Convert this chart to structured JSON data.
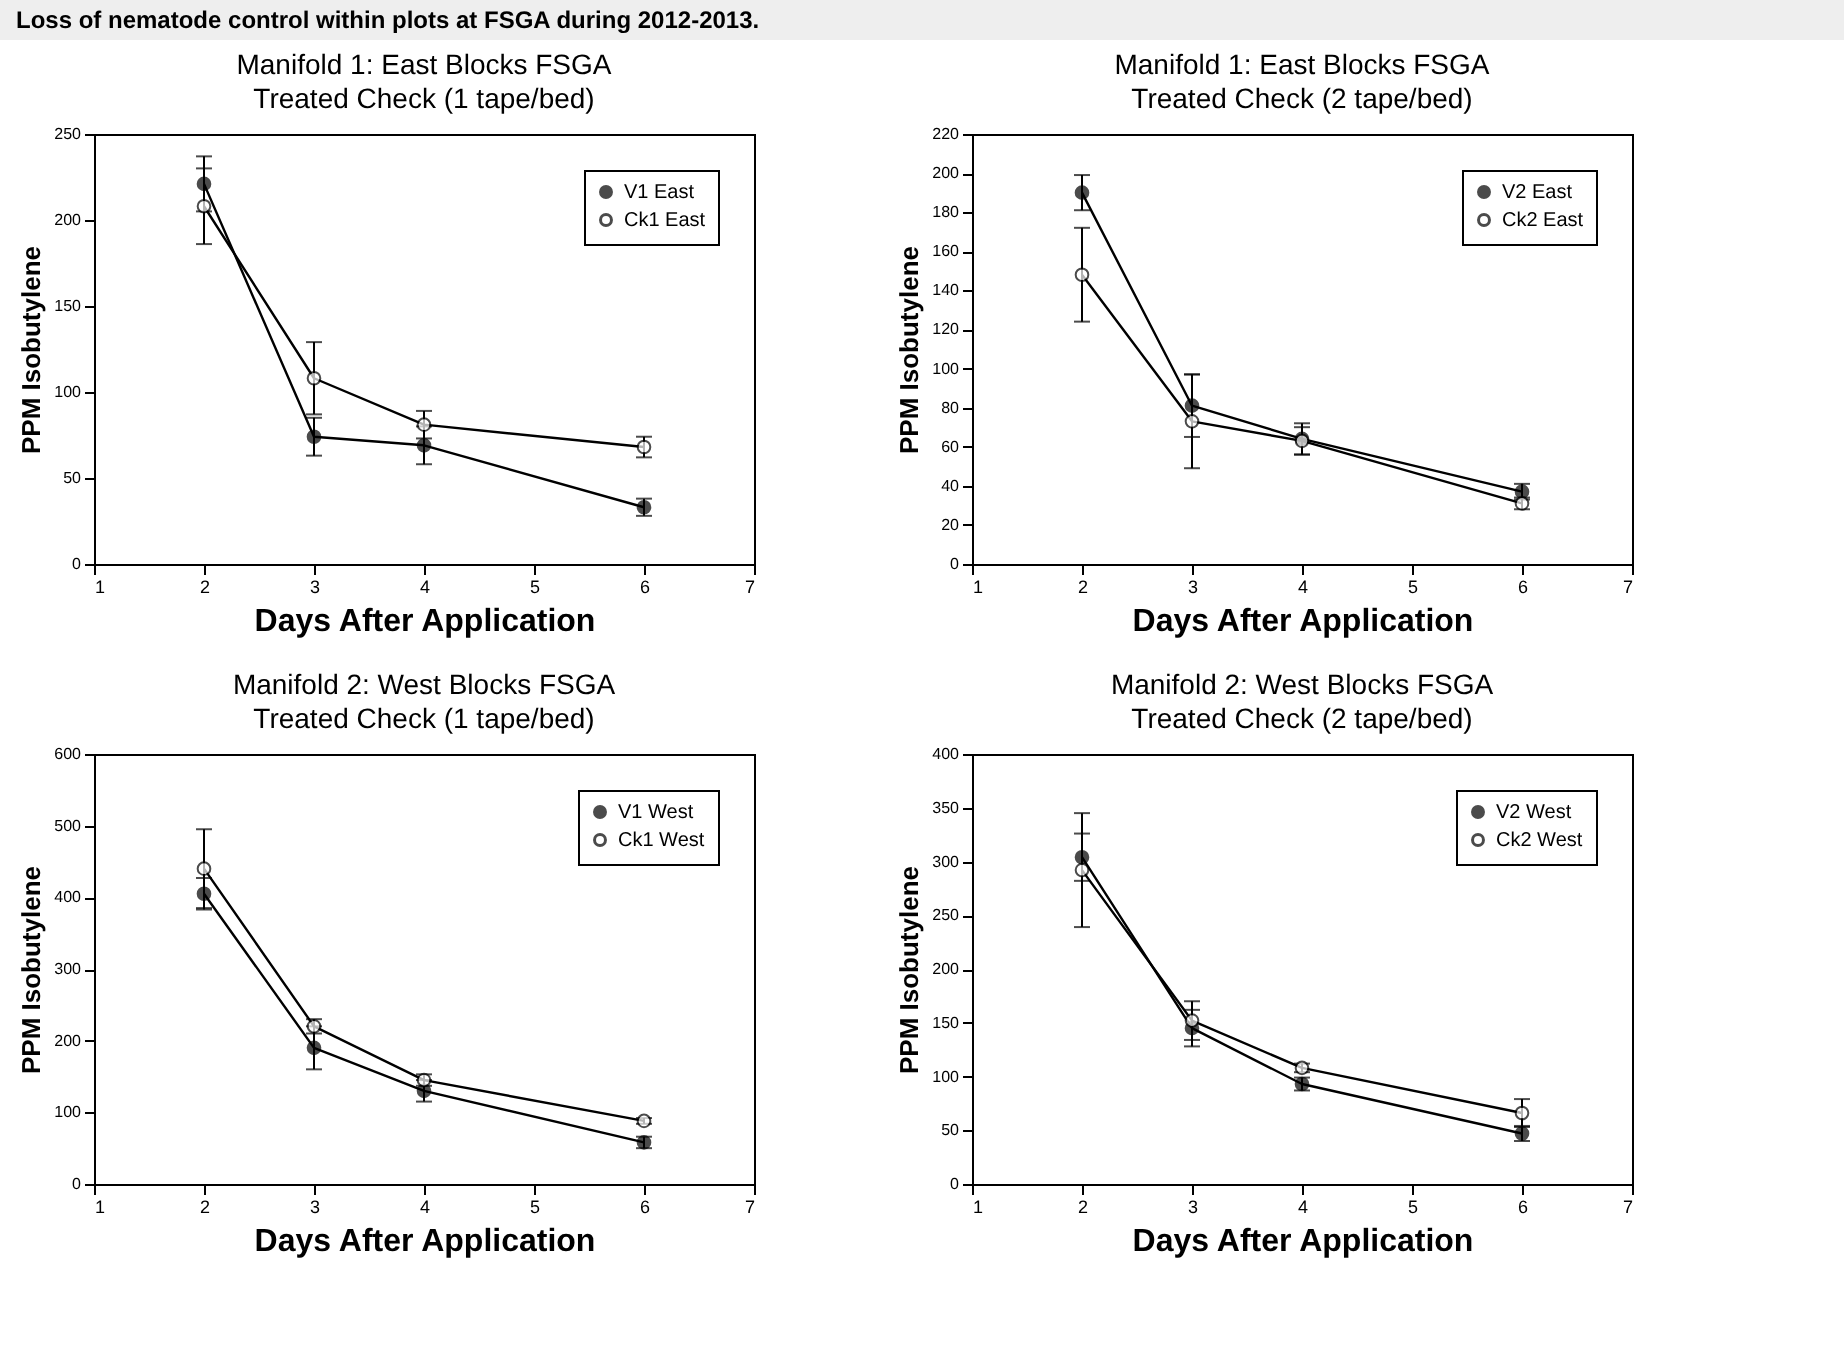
{
  "chart_data": [
    {
      "type": "line",
      "title": "Manifold 1: East Blocks FSGA",
      "subtitle": "Treated Check (1 tape/bed)",
      "xlabel": "Days After Application",
      "ylabel": "PPM Isobutylene",
      "annotations": [
        "Loss of nematode control within plots at FSGA during 2012-2013."
      ],
      "x": [
        2,
        3,
        4,
        6
      ],
      "xlim": [
        1,
        7
      ],
      "xticks": [
        1,
        2,
        3,
        4,
        5,
        6,
        7
      ],
      "ylim": [
        0,
        250
      ],
      "yticks": [
        0,
        50,
        100,
        150,
        200,
        250
      ],
      "legend": "top right",
      "marker": "circle",
      "line_style": "solid",
      "series": [
        {
          "name": "V1 East",
          "color": "#000000",
          "values": [
            221,
            74,
            69,
            33
          ],
          "errors": [
            16,
            11,
            11,
            5
          ]
        },
        {
          "name": "Ck1 East",
          "color": "#000000",
          "values": [
            208,
            108,
            81,
            68
          ],
          "errors": [
            22,
            21,
            8,
            6
          ]
        }
      ]
    },
    {
      "type": "line",
      "title": "Manifold 1: East Blocks FSGA",
      "subtitle": "Treated Check (2 tape/bed)",
      "xlabel": "Days After Application",
      "ylabel": "PPM Isobutylene",
      "x": [
        2,
        3,
        4,
        6
      ],
      "xlim": [
        1,
        7
      ],
      "xticks": [
        1,
        2,
        3,
        4,
        5,
        6,
        7
      ],
      "ylim": [
        0,
        220
      ],
      "yticks": [
        0,
        20,
        40,
        60,
        80,
        100,
        120,
        140,
        160,
        180,
        200,
        220
      ],
      "legend": "top right",
      "marker": "circle",
      "line_style": "solid",
      "series": [
        {
          "name": "V2 East",
          "color": "#000000",
          "values": [
            190,
            81,
            64,
            37
          ],
          "errors": [
            9,
            16,
            8,
            4
          ]
        },
        {
          "name": "Ck2 East",
          "color": "#000000",
          "values": [
            148,
            73,
            63,
            31
          ],
          "errors": [
            24,
            24,
            7,
            3
          ]
        }
      ]
    },
    {
      "type": "line",
      "title": "Manifold 2: West Blocks FSGA",
      "subtitle": "Treated Check (1 tape/bed)",
      "xlabel": "Days After Application",
      "ylabel": "PPM Isobutylene",
      "x": [
        2,
        3,
        4,
        6
      ],
      "xlim": [
        1,
        7
      ],
      "xticks": [
        1,
        2,
        3,
        4,
        5,
        6,
        7
      ],
      "ylim": [
        0,
        600
      ],
      "yticks": [
        0,
        100,
        200,
        300,
        400,
        500,
        600
      ],
      "legend": "top right",
      "marker": "circle",
      "line_style": "solid",
      "series": [
        {
          "name": "V1 West",
          "color": "#000000",
          "values": [
            405,
            190,
            130,
            58
          ],
          "errors": [
            22,
            30,
            15,
            8
          ]
        },
        {
          "name": "Ck1 West",
          "color": "#000000",
          "values": [
            440,
            220,
            145,
            88
          ],
          "errors": [
            55,
            10,
            8,
            4
          ]
        }
      ]
    },
    {
      "type": "line",
      "title": "Manifold 2: West Blocks FSGA",
      "subtitle": "Treated Check (2 tape/bed)",
      "xlabel": "Days After Application",
      "ylabel": "PPM Isobutylene",
      "x": [
        2,
        3,
        4,
        6
      ],
      "xlim": [
        1,
        7
      ],
      "xticks": [
        1,
        2,
        3,
        4,
        5,
        6,
        7
      ],
      "ylim": [
        0,
        400
      ],
      "yticks": [
        0,
        50,
        100,
        150,
        200,
        250,
        300,
        350,
        400
      ],
      "legend": "top right",
      "marker": "circle",
      "line_style": "solid",
      "series": [
        {
          "name": "V2 West",
          "color": "#000000",
          "values": [
            304,
            145,
            93,
            47
          ],
          "errors": [
            22,
            17,
            6,
            7
          ]
        },
        {
          "name": "Ck2 West",
          "color": "#000000",
          "values": [
            292,
            152,
            108,
            66
          ],
          "errors": [
            53,
            18,
            4,
            13
          ]
        }
      ]
    }
  ]
}
